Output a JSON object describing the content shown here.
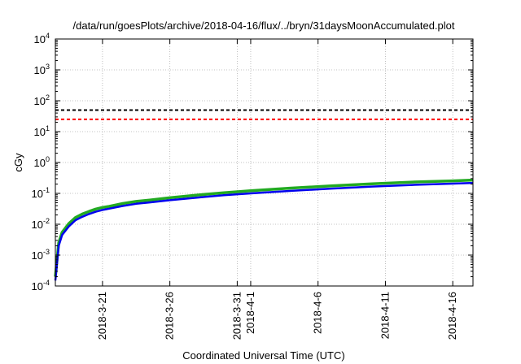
{
  "chart_data": {
    "type": "line",
    "title": "/data/run/goesPlots/archive/2018-04-16/flux/../bryn/31daysMoonAccumulated.plot",
    "xlabel": "Coordinated Universal Time (UTC)",
    "ylabel": "cGy",
    "y_scale": "log",
    "ylim": [
      0.0001,
      10000
    ],
    "y_ticks": [
      {
        "value": 0.0001,
        "base": "10",
        "exp": "-4"
      },
      {
        "value": 0.001,
        "base": "10",
        "exp": "-3"
      },
      {
        "value": 0.01,
        "base": "10",
        "exp": "-2"
      },
      {
        "value": 0.1,
        "base": "10",
        "exp": "-1"
      },
      {
        "value": 1,
        "base": "10",
        "exp": "0"
      },
      {
        "value": 10,
        "base": "10",
        "exp": "1"
      },
      {
        "value": 100,
        "base": "10",
        "exp": "2"
      },
      {
        "value": 1000,
        "base": "10",
        "exp": "3"
      },
      {
        "value": 10000,
        "base": "10",
        "exp": "4"
      }
    ],
    "xlim": [
      "2018-03-17T12:00",
      "2018-04-17T12:00"
    ],
    "x_ticks": [
      {
        "value": "2018-03-21",
        "label": "2018-3-21"
      },
      {
        "value": "2018-03-26",
        "label": "2018-3-26"
      },
      {
        "value": "2018-03-31",
        "label": "2018-3-31"
      },
      {
        "value": "2018-04-01",
        "label": "2018-4-1"
      },
      {
        "value": "2018-04-06",
        "label": "2018-4-6"
      },
      {
        "value": "2018-04-11",
        "label": "2018-4-11"
      },
      {
        "value": "2018-04-16",
        "label": "2018-4-16"
      }
    ],
    "grid": true,
    "reference_lines": [
      {
        "y": 50,
        "color": "#000000",
        "style": "dashed"
      },
      {
        "y": 25,
        "color": "#ff0000",
        "style": "dashed"
      }
    ],
    "series": [
      {
        "color": "#22aa22",
        "x": [
          "2018-03-17T12:00",
          "2018-03-17T18:00",
          "2018-03-18T00:00",
          "2018-03-18T12:00",
          "2018-03-19T00:00",
          "2018-03-19T12:00",
          "2018-03-20T00:00",
          "2018-03-20T12:00",
          "2018-03-21T00:00",
          "2018-03-21T12:00",
          "2018-03-22T12:00",
          "2018-03-23T12:00",
          "2018-03-24T12:00",
          "2018-03-26T00:00",
          "2018-03-28T00:00",
          "2018-03-30T00:00",
          "2018-04-01T00:00",
          "2018-04-04T00:00",
          "2018-04-07T00:00",
          "2018-04-10T00:00",
          "2018-04-13T00:00",
          "2018-04-16T00:00",
          "2018-04-17T12:00"
        ],
        "values": [
          0.0002,
          0.0025,
          0.0055,
          0.0105,
          0.0165,
          0.0215,
          0.026,
          0.031,
          0.035,
          0.038,
          0.047,
          0.055,
          0.061,
          0.072,
          0.088,
          0.105,
          0.122,
          0.148,
          0.175,
          0.205,
          0.232,
          0.255,
          0.27
        ]
      },
      {
        "color": "#0000ee",
        "x": [
          "2018-03-17T12:00",
          "2018-03-17T18:00",
          "2018-03-18T00:00",
          "2018-03-18T12:00",
          "2018-03-19T00:00",
          "2018-03-19T12:00",
          "2018-03-20T00:00",
          "2018-03-20T12:00",
          "2018-03-21T00:00",
          "2018-03-21T12:00",
          "2018-03-22T12:00",
          "2018-03-23T12:00",
          "2018-03-24T12:00",
          "2018-03-26T00:00",
          "2018-03-28T00:00",
          "2018-03-30T00:00",
          "2018-04-01T00:00",
          "2018-04-04T00:00",
          "2018-04-07T00:00",
          "2018-04-10T00:00",
          "2018-04-13T00:00",
          "2018-04-16T00:00",
          "2018-04-17T12:00"
        ],
        "values": [
          0.00015,
          0.002,
          0.0045,
          0.0085,
          0.0135,
          0.0175,
          0.0215,
          0.0255,
          0.029,
          0.032,
          0.039,
          0.046,
          0.051,
          0.06,
          0.073,
          0.087,
          0.1,
          0.121,
          0.143,
          0.166,
          0.188,
          0.207,
          0.219
        ]
      }
    ]
  }
}
